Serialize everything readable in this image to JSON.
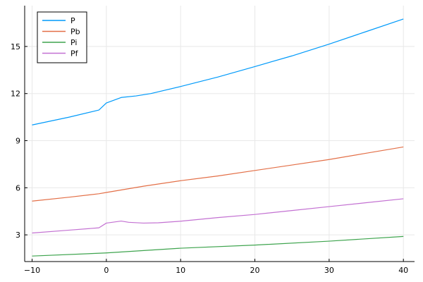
{
  "chart_data": {
    "type": "line",
    "title": "",
    "xlabel": "",
    "ylabel": "",
    "xlim": [
      -11,
      41.5
    ],
    "ylim": [
      1.3,
      17.6
    ],
    "xticks": [
      -10,
      0,
      10,
      20,
      30,
      40
    ],
    "yticks": [
      3,
      6,
      9,
      12,
      15
    ],
    "xtick_labels": [
      "−10",
      "0",
      "10",
      "20",
      "30",
      "40"
    ],
    "ytick_labels": [
      "3",
      "6",
      "9",
      "12",
      "15"
    ],
    "grid": true,
    "legend_position": "top-left",
    "series": [
      {
        "name": "P",
        "color": "#009AFA",
        "points": [
          [
            -10,
            10.0
          ],
          [
            -5,
            10.5
          ],
          [
            -1,
            10.95
          ],
          [
            0,
            11.4
          ],
          [
            2,
            11.75
          ],
          [
            4,
            11.85
          ],
          [
            6,
            12.0
          ],
          [
            10,
            12.45
          ],
          [
            15,
            13.05
          ],
          [
            20,
            13.72
          ],
          [
            25,
            14.4
          ],
          [
            30,
            15.15
          ],
          [
            35,
            15.95
          ],
          [
            40,
            16.75
          ]
        ]
      },
      {
        "name": "Pb",
        "color": "#E36F47",
        "points": [
          [
            -10,
            5.15
          ],
          [
            -5,
            5.4
          ],
          [
            -1,
            5.62
          ],
          [
            0,
            5.7
          ],
          [
            5,
            6.1
          ],
          [
            10,
            6.45
          ],
          [
            15,
            6.75
          ],
          [
            20,
            7.1
          ],
          [
            25,
            7.45
          ],
          [
            30,
            7.8
          ],
          [
            35,
            8.2
          ],
          [
            40,
            8.6
          ]
        ]
      },
      {
        "name": "Pi",
        "color": "#3EA44E",
        "points": [
          [
            -10,
            1.65
          ],
          [
            0,
            1.85
          ],
          [
            10,
            2.15
          ],
          [
            20,
            2.35
          ],
          [
            30,
            2.6
          ],
          [
            40,
            2.9
          ]
        ]
      },
      {
        "name": "Pf",
        "color": "#C371D2",
        "points": [
          [
            -10,
            3.12
          ],
          [
            -5,
            3.3
          ],
          [
            -1,
            3.45
          ],
          [
            0,
            3.75
          ],
          [
            2,
            3.88
          ],
          [
            3,
            3.8
          ],
          [
            5,
            3.75
          ],
          [
            7,
            3.77
          ],
          [
            10,
            3.87
          ],
          [
            15,
            4.1
          ],
          [
            20,
            4.3
          ],
          [
            25,
            4.55
          ],
          [
            30,
            4.8
          ],
          [
            35,
            5.05
          ],
          [
            40,
            5.3
          ]
        ]
      }
    ]
  }
}
